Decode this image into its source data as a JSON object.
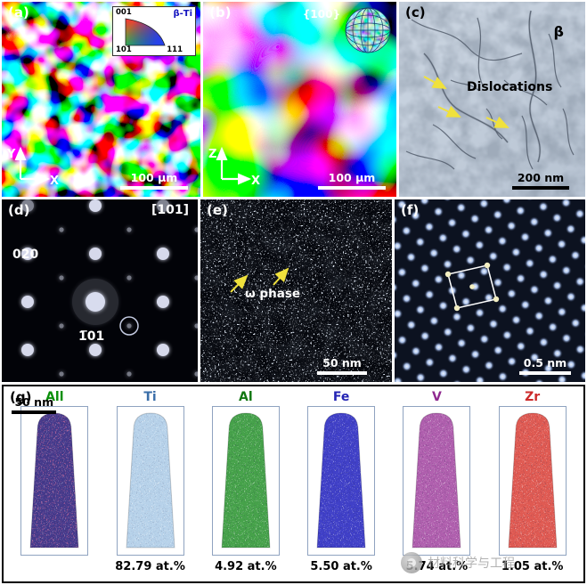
{
  "panels": {
    "a": {
      "label": "(a)",
      "legend": {
        "c1": "001",
        "c2": "101",
        "c3": "111",
        "phase": "β-Ti"
      },
      "axis_v": "Y",
      "axis_h": "X",
      "scalebar": "100 μm"
    },
    "b": {
      "label": "(b)",
      "inset_label": "{100}",
      "axis_v": "Z",
      "axis_h": "X",
      "scalebar": "100 μm"
    },
    "c": {
      "label": "(c)",
      "phase": "β",
      "annotation": "Dislocations",
      "scalebar": "200 nm"
    },
    "d": {
      "label": "(d)",
      "zone_axis": "[101]",
      "reflection_1": "020",
      "reflection_2": "1̅01"
    },
    "e": {
      "label": "(e)",
      "annotation": "ω phase",
      "scalebar": "50 nm"
    },
    "f": {
      "label": "(f)",
      "scalebar": "0.5 nm"
    },
    "g": {
      "label": "(g)",
      "scalebar": "50 nm",
      "tips": [
        {
          "name": "All",
          "color": "#453a8c"
        },
        {
          "name": "Ti",
          "value": "82.79 at.%",
          "color": "#b7d2ea"
        },
        {
          "name": "Al",
          "value": "4.92 at.%",
          "color": "#46a24a"
        },
        {
          "name": "Fe",
          "value": "5.50 at.%",
          "color": "#4040c8"
        },
        {
          "name": "V",
          "value": "5.74 at.%",
          "color": "#b05fae"
        },
        {
          "name": "Zr",
          "value": "1.05 at.%",
          "color": "#e05a52"
        }
      ]
    }
  },
  "watermark": "材料科学与工程"
}
